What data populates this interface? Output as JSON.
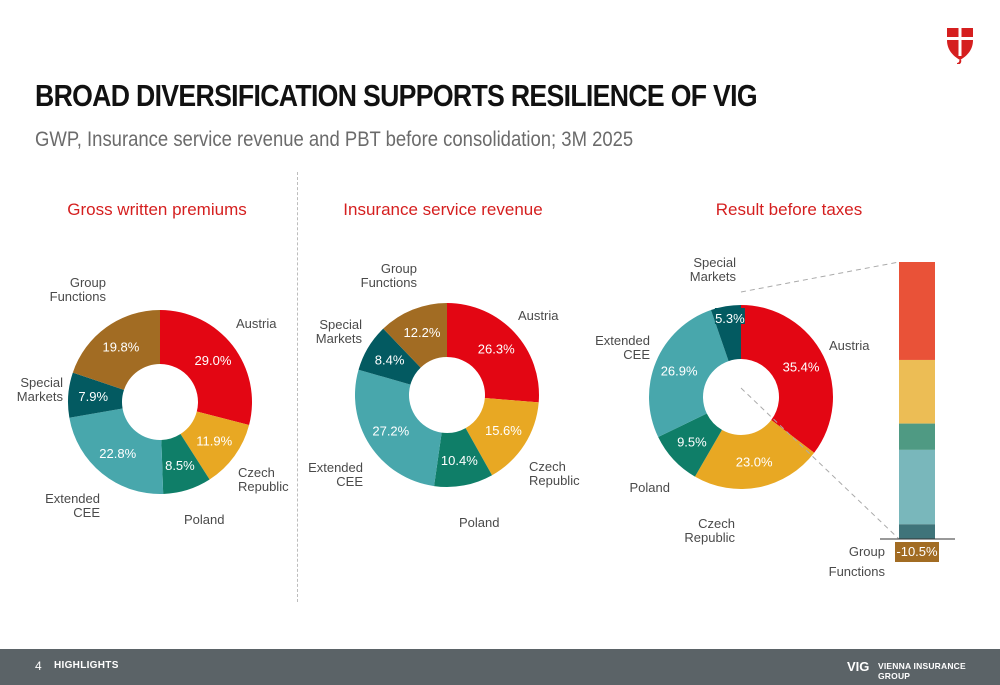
{
  "header": {
    "title": "BROAD DIVERSIFICATION SUPPORTS RESILIENCE OF VIG",
    "subtitle": "GWP, Insurance service revenue and PBT before consolidation; 3M 2025"
  },
  "footer": {
    "page_number": "4",
    "section": "HIGHLIGHTS",
    "brand": "VIG",
    "brand_name": "VIENNA INSURANCE GROUP"
  },
  "colors": {
    "austria": "#e30613",
    "czech_republic": "#e8a823",
    "poland": "#0f7e68",
    "extended_cee": "#48a7ac",
    "special_markets": "#035a61",
    "group_functions": "#a26c23",
    "title_red": "#d51f1f"
  },
  "chart_data": [
    {
      "type": "pie",
      "title": "Gross written premiums",
      "slices": [
        {
          "label": "Austria",
          "value": 29.0,
          "display": "29.0%"
        },
        {
          "label": "Czech Republic",
          "value": 11.9,
          "display": "11.9%"
        },
        {
          "label": "Poland",
          "value": 8.5,
          "display": "8.5%"
        },
        {
          "label": "Extended CEE",
          "value": 22.8,
          "display": "22.8%"
        },
        {
          "label": "Special Markets",
          "value": 7.9,
          "display": "7.9%"
        },
        {
          "label": "Group Functions",
          "value": 19.8,
          "display": "19.8%"
        }
      ]
    },
    {
      "type": "pie",
      "title": "Insurance service revenue",
      "slices": [
        {
          "label": "Austria",
          "value": 26.3,
          "display": "26.3%"
        },
        {
          "label": "Czech Republic",
          "value": 15.6,
          "display": "15.6%"
        },
        {
          "label": "Poland",
          "value": 10.4,
          "display": "10.4%"
        },
        {
          "label": "Extended CEE",
          "value": 27.2,
          "display": "27.2%"
        },
        {
          "label": "Special Markets",
          "value": 8.4,
          "display": "8.4%"
        },
        {
          "label": "Group Functions",
          "value": 12.2,
          "display": "12.2%"
        }
      ]
    },
    {
      "type": "pie",
      "title": "Result before taxes",
      "slices": [
        {
          "label": "Austria",
          "value": 35.4,
          "display": "35.4%"
        },
        {
          "label": "Czech Republic",
          "value": 23.0,
          "display": "23.0%"
        },
        {
          "label": "Poland",
          "value": 9.5,
          "display": "9.5%"
        },
        {
          "label": "Extended CEE",
          "value": 26.9,
          "display": "26.9%"
        },
        {
          "label": "Special Markets",
          "value": 5.3,
          "display": "5.3%"
        }
      ],
      "breakout_bar": {
        "segments": [
          {
            "label": "Austria",
            "value": 35.4
          },
          {
            "label": "Czech Republic",
            "value": 23.0
          },
          {
            "label": "Poland",
            "value": 9.5
          },
          {
            "label": "Extended CEE",
            "value": 26.9
          },
          {
            "label": "Special Markets",
            "value": 5.3
          }
        ],
        "negative": {
          "label": "Group Functions",
          "value": -10.5,
          "display": "-10.5%"
        }
      }
    }
  ]
}
